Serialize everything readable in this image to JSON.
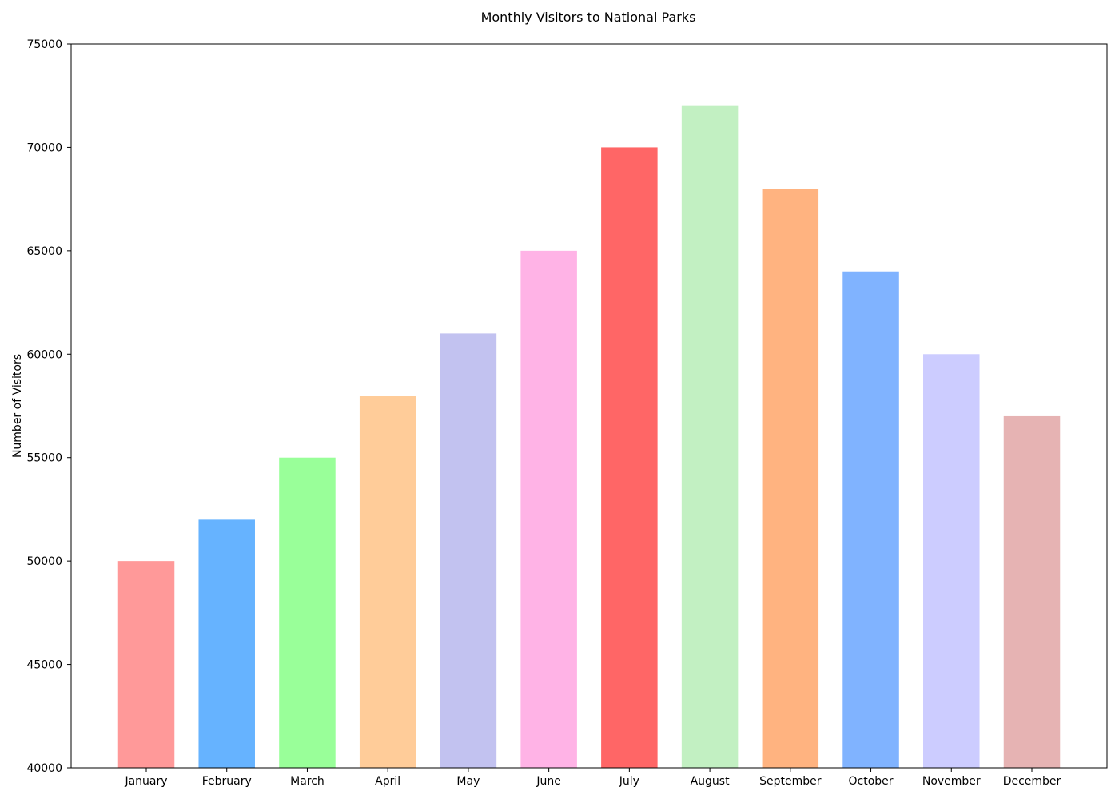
{
  "chart_data": {
    "type": "bar",
    "title": "Monthly Visitors to National Parks",
    "xlabel": "",
    "ylabel": "Number of Visitors",
    "categories": [
      "January",
      "February",
      "March",
      "April",
      "May",
      "June",
      "July",
      "August",
      "September",
      "October",
      "November",
      "December"
    ],
    "values": [
      50000,
      52000,
      55000,
      58000,
      61000,
      65000,
      70000,
      72000,
      68000,
      64000,
      60000,
      57000
    ],
    "colors": [
      "#ff9999",
      "#66b3ff",
      "#99ff99",
      "#ffcc99",
      "#c2c2f0",
      "#ffb3e6",
      "#ff6666",
      "#c2f0c2",
      "#ffb380",
      "#80b3ff",
      "#ccccff",
      "#e6b3b3"
    ],
    "ylim": [
      40000,
      75000
    ],
    "yticks": [
      40000,
      45000,
      50000,
      55000,
      60000,
      65000,
      70000,
      75000
    ],
    "grid": false,
    "legend": "none"
  }
}
